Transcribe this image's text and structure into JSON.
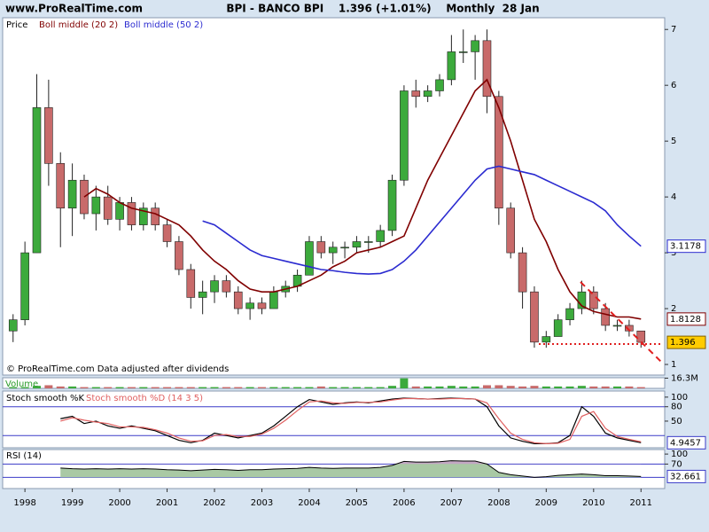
{
  "chart_data": [
    {
      "type": "candlestick",
      "site": "www.ProRealTime.com",
      "title": "BPI - BANCO BPI    1.396 (+1.01%)    Monthly  28 Jan",
      "note": "© ProRealTime.com Data adjusted after dividends",
      "x": [
        1997.75,
        1998,
        1998.25,
        1998.5,
        1998.75,
        1999,
        1999.25,
        1999.5,
        1999.75,
        2000,
        2000.25,
        2000.5,
        2000.75,
        2001,
        2001.25,
        2001.5,
        2001.75,
        2002,
        2002.25,
        2002.5,
        2002.75,
        2003,
        2003.25,
        2003.5,
        2003.75,
        2004,
        2004.25,
        2004.5,
        2004.75,
        2005,
        2005.25,
        2005.5,
        2005.75,
        2006,
        2006.25,
        2006.5,
        2006.75,
        2007,
        2007.25,
        2007.5,
        2007.75,
        2008,
        2008.25,
        2008.5,
        2008.75,
        2009,
        2009.25,
        2009.5,
        2009.75,
        2010,
        2010.25,
        2010.5,
        2010.75,
        2011
      ],
      "xlim": [
        1997.53,
        2011.5
      ],
      "ylim": [
        0.81,
        7.21
      ],
      "yticks": [
        1,
        2,
        3,
        4,
        5,
        6,
        7
      ],
      "price": {
        "name": "Price",
        "up_color": "#3caa3c",
        "down_color": "#c86a6a",
        "last_color": "#ffcc00",
        "open": [
          1.6,
          1.8,
          3.0,
          5.6,
          4.6,
          3.8,
          4.3,
          3.7,
          4.0,
          3.6,
          3.9,
          3.5,
          3.8,
          3.5,
          3.2,
          2.7,
          2.2,
          2.3,
          2.5,
          2.3,
          2.0,
          2.1,
          2.0,
          2.3,
          2.4,
          2.6,
          3.2,
          3.0,
          3.1,
          3.1,
          3.2,
          3.2,
          3.4,
          4.3,
          5.9,
          5.8,
          5.9,
          6.1,
          6.6,
          6.6,
          6.8,
          5.8,
          3.8,
          3.0,
          2.3,
          1.4,
          1.5,
          1.8,
          2.0,
          2.3,
          2.0,
          1.7,
          1.7,
          1.6
        ],
        "high": [
          1.9,
          3.2,
          6.2,
          6.1,
          4.8,
          4.6,
          4.4,
          4.2,
          4.2,
          4.0,
          4.0,
          3.9,
          3.9,
          3.6,
          3.3,
          2.8,
          2.5,
          2.6,
          2.6,
          2.4,
          2.2,
          2.2,
          2.4,
          2.5,
          2.7,
          3.3,
          3.3,
          3.2,
          3.2,
          3.3,
          3.3,
          3.5,
          4.4,
          6.0,
          6.1,
          6.0,
          6.2,
          6.9,
          7.0,
          6.9,
          7.0,
          5.9,
          3.9,
          3.1,
          2.4,
          1.6,
          1.9,
          2.1,
          2.5,
          2.4,
          2.1,
          1.8,
          1.8,
          1.6
        ],
        "low": [
          1.4,
          1.7,
          3.0,
          4.2,
          3.1,
          3.3,
          3.6,
          3.4,
          3.5,
          3.4,
          3.4,
          3.4,
          3.4,
          3.1,
          2.6,
          2.0,
          1.9,
          2.1,
          2.2,
          1.9,
          1.8,
          1.9,
          2.0,
          2.2,
          2.3,
          2.6,
          2.9,
          2.8,
          2.9,
          3.0,
          3.0,
          3.1,
          3.3,
          4.2,
          5.6,
          5.7,
          5.8,
          6.0,
          6.4,
          6.1,
          5.5,
          3.5,
          2.9,
          2.0,
          1.3,
          1.3,
          1.5,
          1.7,
          1.9,
          1.9,
          1.6,
          1.6,
          1.5,
          1.3
        ],
        "close": [
          1.8,
          3.0,
          5.6,
          4.6,
          3.8,
          4.3,
          3.7,
          4.0,
          3.6,
          3.9,
          3.5,
          3.8,
          3.5,
          3.2,
          2.7,
          2.2,
          2.3,
          2.5,
          2.3,
          2.0,
          2.1,
          2.0,
          2.3,
          2.4,
          2.6,
          3.2,
          3.0,
          3.1,
          3.1,
          3.2,
          3.2,
          3.4,
          4.3,
          5.9,
          5.8,
          5.9,
          6.1,
          6.6,
          6.6,
          6.8,
          5.8,
          3.8,
          3.0,
          2.3,
          1.4,
          1.5,
          1.8,
          2.0,
          2.3,
          2.0,
          1.7,
          1.7,
          1.6,
          1.396
        ]
      },
      "series": [
        {
          "name": "Boll middle (20 2)",
          "color": "#800000",
          "values": [
            null,
            null,
            null,
            null,
            null,
            null,
            4.0,
            4.15,
            4.05,
            3.9,
            3.8,
            3.75,
            3.7,
            3.6,
            3.5,
            3.3,
            3.05,
            2.85,
            2.7,
            2.5,
            2.35,
            2.3,
            2.3,
            2.35,
            2.4,
            2.5,
            2.6,
            2.75,
            2.85,
            3.0,
            3.05,
            3.1,
            3.2,
            3.3,
            3.8,
            4.3,
            4.7,
            5.1,
            5.5,
            5.9,
            6.1,
            5.6,
            5.0,
            4.3,
            3.6,
            3.2,
            2.7,
            2.3,
            2.05,
            1.95,
            1.9,
            1.85,
            1.85,
            1.8128
          ]
        },
        {
          "name": "Boll middle (50 2)",
          "color": "#2b2bd0",
          "values": [
            null,
            null,
            null,
            null,
            null,
            null,
            null,
            null,
            null,
            null,
            null,
            null,
            null,
            null,
            null,
            null,
            3.57,
            3.5,
            3.35,
            3.2,
            3.05,
            2.95,
            2.9,
            2.85,
            2.8,
            2.75,
            2.7,
            2.68,
            2.65,
            2.63,
            2.62,
            2.63,
            2.7,
            2.85,
            3.05,
            3.3,
            3.55,
            3.8,
            4.05,
            4.3,
            4.5,
            4.55,
            4.5,
            4.45,
            4.4,
            4.3,
            4.2,
            4.1,
            4.0,
            3.9,
            3.75,
            3.5,
            3.3,
            3.1178
          ]
        }
      ]
    },
    {
      "type": "bar",
      "name": "Volume",
      "name_color": "#2a9a2a",
      "values": [
        2,
        2,
        4,
        5,
        3,
        3,
        2,
        2,
        2,
        2,
        2,
        2,
        2,
        2,
        2,
        2,
        2,
        2,
        2,
        2,
        2,
        2,
        2,
        2,
        2,
        2,
        3,
        2,
        2,
        2,
        2,
        2,
        4,
        16,
        3,
        3,
        3,
        4,
        3,
        3,
        5,
        5,
        4,
        3,
        4,
        3,
        3,
        3,
        4,
        3,
        3,
        3,
        3,
        2
      ],
      "ylim": [
        0,
        17
      ],
      "yticks": [
        {
          "value": 16.3,
          "label": "16.3M"
        }
      ]
    },
    {
      "type": "line",
      "series": [
        {
          "name": "Stoch smooth %K",
          "color": "#000000",
          "values": [
            null,
            null,
            null,
            null,
            55,
            60,
            45,
            50,
            40,
            35,
            40,
            35,
            30,
            20,
            10,
            5,
            10,
            25,
            20,
            15,
            20,
            25,
            40,
            60,
            80,
            95,
            90,
            85,
            88,
            90,
            88,
            92,
            96,
            98,
            97,
            96,
            97,
            98,
            97,
            96,
            80,
            40,
            15,
            8,
            3,
            3,
            5,
            20,
            80,
            60,
            25,
            15,
            10,
            4.9457
          ]
        },
        {
          "name": "Stoch smooth %D (14 3 5)",
          "color": "#e06060",
          "values": [
            null,
            null,
            null,
            null,
            50,
            57,
            52,
            48,
            45,
            38,
            38,
            37,
            32,
            25,
            15,
            8,
            9,
            20,
            22,
            18,
            18,
            23,
            35,
            52,
            72,
            90,
            92,
            88,
            87,
            89,
            89,
            90,
            94,
            97,
            97,
            96,
            96,
            97,
            97,
            96,
            88,
            55,
            25,
            12,
            5,
            3,
            4,
            12,
            60,
            70,
            35,
            18,
            12,
            7
          ]
        }
      ],
      "ylim": [
        -5.5,
        112.7
      ],
      "yticks": [
        100,
        80,
        50
      ],
      "levels": [
        80,
        20
      ],
      "level_color": "#3b3bc8"
    },
    {
      "type": "area",
      "series": [
        {
          "name": "RSI (14)",
          "color": "#000000",
          "values": [
            null,
            null,
            null,
            null,
            58,
            56,
            55,
            56,
            55,
            56,
            55,
            56,
            55,
            53,
            52,
            50,
            52,
            54,
            53,
            51,
            53,
            53,
            55,
            56,
            57,
            60,
            58,
            57,
            58,
            58,
            58,
            60,
            66,
            78,
            76,
            76,
            77,
            80,
            79,
            79,
            70,
            45,
            38,
            34,
            30,
            32,
            36,
            38,
            40,
            38,
            35,
            35,
            34,
            32.661
          ]
        }
      ],
      "ylim": [
        -3.5,
        113.6
      ],
      "yticks": [
        100,
        70
      ],
      "levels": [
        70,
        30
      ],
      "level_color": "#3b3bc8",
      "fill_color": "#a9c9a4",
      "over_color": "#c4a8c4",
      "xticks": [
        1998,
        1999,
        2000,
        2001,
        2002,
        2003,
        2004,
        2005,
        2006,
        2007,
        2008,
        2009,
        2010,
        2011
      ]
    }
  ]
}
